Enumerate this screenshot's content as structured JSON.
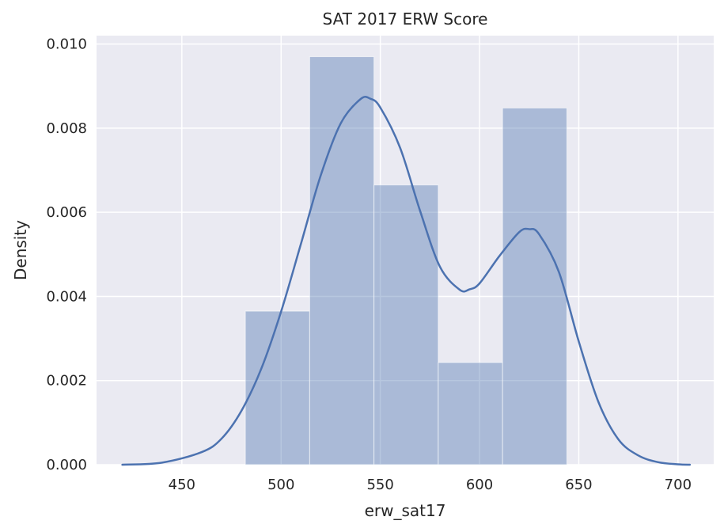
{
  "chart_data": {
    "type": "bar",
    "title": "SAT 2017 ERW Score",
    "xlabel": "erw_sat17",
    "ylabel": "Density",
    "xlim": [
      407,
      718
    ],
    "ylim": [
      0,
      0.0102
    ],
    "grid": true,
    "legend": "none",
    "x_ticks": [
      450,
      500,
      550,
      600,
      650,
      700
    ],
    "y_ticks": [
      0.0,
      0.002,
      0.004,
      0.006,
      0.008,
      0.01
    ],
    "x_tick_labels": [
      "450",
      "500",
      "550",
      "600",
      "650",
      "700"
    ],
    "y_tick_labels": [
      "0.000",
      "0.002",
      "0.004",
      "0.006",
      "0.008",
      "0.010"
    ],
    "histogram": {
      "bin_edges": [
        482,
        514.4,
        546.8,
        579.2,
        611.6,
        644
      ],
      "values": [
        0.00365,
        0.0097,
        0.00665,
        0.00243,
        0.00848
      ]
    },
    "kde": {
      "x": [
        420,
        440,
        460,
        470,
        480,
        490,
        500,
        510,
        520,
        530,
        540,
        545,
        550,
        560,
        570,
        580,
        590,
        595,
        600,
        610,
        620,
        625,
        630,
        640,
        650,
        660,
        670,
        680,
        690,
        700,
        706
      ],
      "y": [
        0.0,
        5e-05,
        0.0003,
        0.00062,
        0.00128,
        0.00228,
        0.00364,
        0.00525,
        0.00688,
        0.00811,
        0.00869,
        0.0087,
        0.00849,
        0.00753,
        0.00604,
        0.00471,
        0.00416,
        0.00417,
        0.00431,
        0.00496,
        0.00553,
        0.0056,
        0.00548,
        0.00458,
        0.00293,
        0.00148,
        0.0006,
        0.00022,
        6e-05,
        1e-05,
        0.0
      ]
    },
    "colors": {
      "background": "#eaeaf2",
      "grid": "#ffffff",
      "bar_fill": "#4c72b0",
      "bar_opacity": 0.4,
      "line": "#4c72b0"
    }
  }
}
